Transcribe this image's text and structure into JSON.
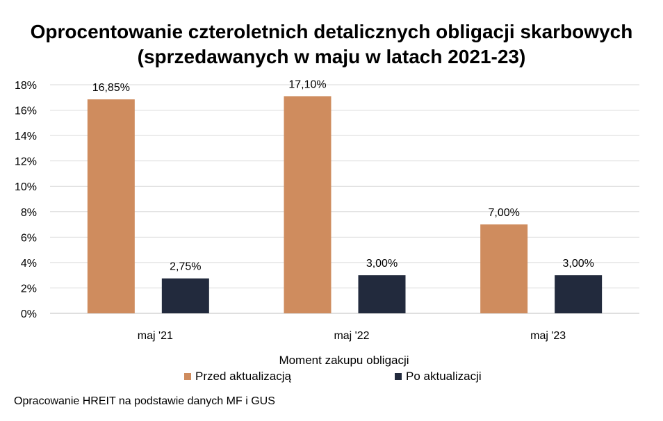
{
  "chart_data": {
    "type": "bar",
    "title_line1": "Oprocentowanie czteroletnich detalicznych obligacji skarbowych",
    "title_line2": "(sprzedawanych w maju w latach 2021-23)",
    "xlabel": "Moment zakupu obligacji",
    "ylabel": "",
    "categories": [
      "maj '21",
      "maj '22",
      "maj '23"
    ],
    "series": [
      {
        "name": "Przed aktualizacją",
        "color": "#CF8C5E",
        "values": [
          16.85,
          17.1,
          7.0
        ],
        "labels": [
          "16,85%",
          "17,10%",
          "7,00%"
        ]
      },
      {
        "name": "Po aktualizacji",
        "color": "#222A3D",
        "values": [
          2.75,
          3.0,
          3.0
        ],
        "labels": [
          "2,75%",
          "3,00%",
          "3,00%"
        ]
      }
    ],
    "ylim": [
      0,
      18
    ],
    "yticks": [
      0,
      2,
      4,
      6,
      8,
      10,
      12,
      14,
      16,
      18
    ],
    "ytick_labels": [
      "0%",
      "2%",
      "4%",
      "6%",
      "8%",
      "10%",
      "12%",
      "14%",
      "16%",
      "18%"
    ],
    "grid": true,
    "legend_position": "bottom"
  },
  "source_note": "Opracowanie HREIT na podstawie danych MF i GUS"
}
